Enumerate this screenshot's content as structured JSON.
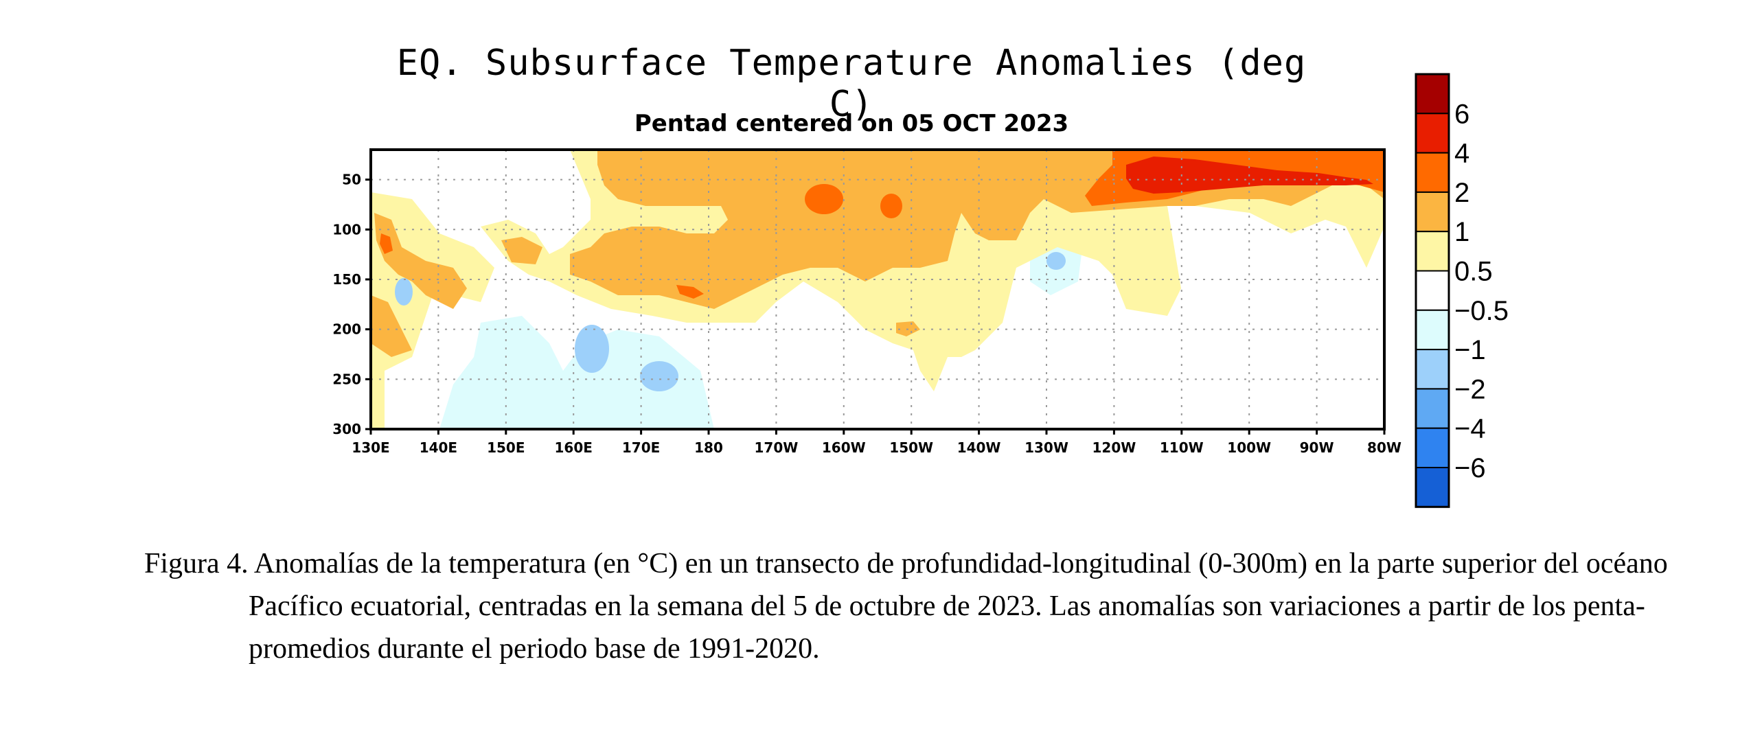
{
  "chart_data": {
    "type": "heatmap",
    "title": "EQ. Subsurface Temperature Anomalies (deg C)",
    "subtitle": "Pentad centered on 05 OCT 2023",
    "xlabel": "",
    "ylabel": "",
    "x_ticks": [
      "130E",
      "140E",
      "150E",
      "160E",
      "170E",
      "180",
      "170W",
      "160W",
      "150W",
      "140W",
      "130W",
      "120W",
      "110W",
      "100W",
      "90W",
      "80W"
    ],
    "y_ticks": [
      "50",
      "100",
      "150",
      "200",
      "250",
      "300"
    ],
    "x_range": [
      130,
      280
    ],
    "y_range": [
      20,
      300
    ],
    "grid": true,
    "colorbar": {
      "levels": [
        "6",
        "4",
        "2",
        "1",
        "0.5",
        "−0.5",
        "−1",
        "−2",
        "−4",
        "−6"
      ],
      "colors": [
        "#a50000",
        "#e81e00",
        "#ff6a00",
        "#fbb541",
        "#fef6a5",
        "#ffffff",
        "#ddfcfd",
        "#9dd0fa",
        "#5fa9f3",
        "#2f83f0",
        "#1560d6"
      ]
    },
    "anomalies": [
      {
        "level": 2,
        "lon": 230,
        "depth": 40,
        "value": 5,
        "label": "warm core near 110W-100W"
      },
      {
        "level": 1,
        "lon": 165,
        "depth": 80,
        "value": 2,
        "label": "warm layer 160E-140W"
      },
      {
        "level": -1,
        "lon": 163,
        "depth": 235,
        "value": -2,
        "label": "cool cell 160E"
      },
      {
        "level": -1,
        "lon": 173,
        "depth": 250,
        "value": -2,
        "label": "cool cell 170E"
      },
      {
        "level": -1,
        "lon": 230,
        "depth": 125,
        "value": -2,
        "label": "cool cell 130W"
      }
    ]
  },
  "caption": "Figura 4. Anomalías de la temperatura (en °C) en un transecto de profundidad-longitudinal (0-300m) en la parte superior del océano Pacífico ecuatorial, centradas en la semana del 5 de octubre de 2023. Las anomalías son variaciones a partir de los penta-promedios durante el periodo base de 1991-2020.",
  "colors": {
    "frame": "#000000",
    "grid": "#9a9a9a"
  }
}
